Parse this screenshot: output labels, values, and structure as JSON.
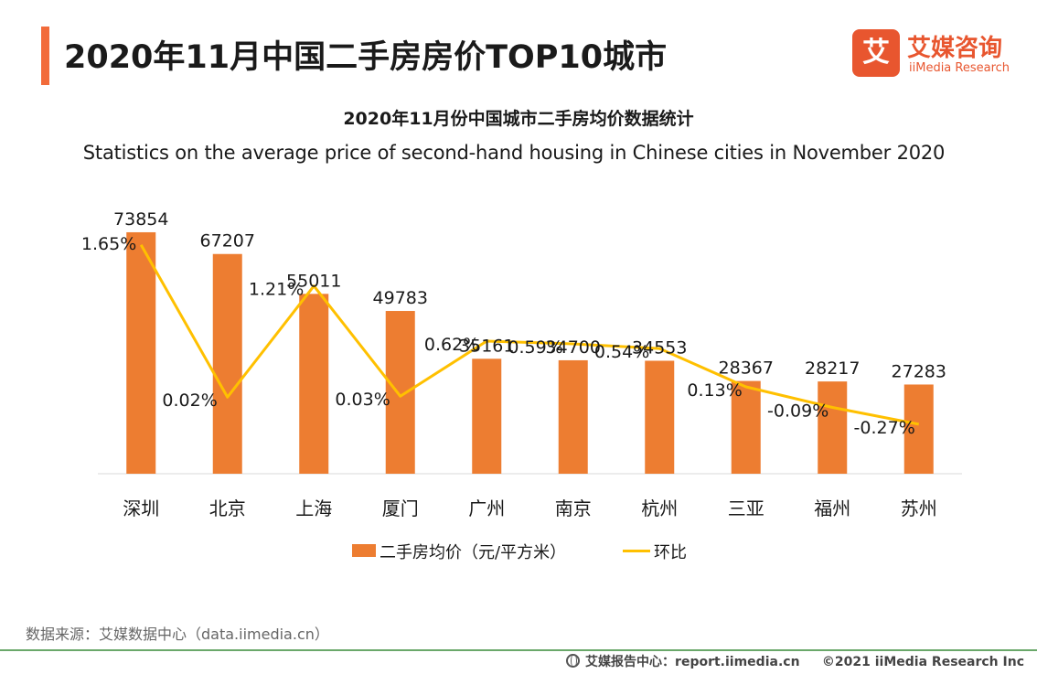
{
  "header": {
    "title": "2020年11月中国二手房房价TOP10城市",
    "accent_color": "#f26b3a"
  },
  "logo": {
    "badge_char": "艾",
    "name_cn": "艾媒咨询",
    "name_en": "iiMedia Research",
    "color": "#e8562f"
  },
  "chart_data": {
    "type": "bar",
    "title": "2020年11月份中国城市二手房均价数据统计",
    "subtitle": "Statistics on the average price of second-hand housing in Chinese cities in November  2020",
    "categories": [
      "深圳",
      "北京",
      "上海",
      "厦门",
      "广州",
      "南京",
      "杭州",
      "三亚",
      "福州",
      "苏州"
    ],
    "series": [
      {
        "name": "二手房均价（元/平方米）",
        "type": "bar",
        "color": "#ed7d31",
        "values": [
          73854,
          67207,
          55011,
          49783,
          35161,
          34700,
          34553,
          28367,
          28217,
          27283
        ],
        "labels": [
          "73854",
          "67207",
          "55011",
          "49783",
          "35161",
          "34700",
          "34553",
          "28367",
          "28217",
          "27283"
        ]
      },
      {
        "name": "环比",
        "type": "line",
        "color": "#ffc000",
        "values": [
          1.65,
          0.02,
          1.21,
          0.03,
          0.62,
          0.59,
          0.54,
          0.13,
          -0.09,
          -0.27
        ],
        "labels": [
          "1.65%",
          "0.02%",
          "1.21%",
          "0.03%",
          "0.62%",
          "0.59%",
          "0.54%",
          "0.13%",
          "-0.09%",
          "-0.27%"
        ]
      }
    ],
    "bar_ylim": [
      0,
      80000
    ],
    "line_ylim": [
      -0.8,
      2.0
    ],
    "legend_position": "bottom",
    "grid": false
  },
  "source": "数据来源：艾媒数据中心（data.iimedia.cn）",
  "footer": {
    "center": "艾媒报告中心：report.iimedia.cn",
    "copyright": "©2021  iiMedia Research  Inc"
  }
}
